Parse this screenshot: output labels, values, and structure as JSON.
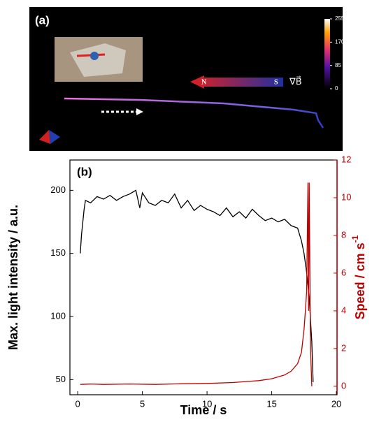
{
  "panel_a": {
    "label": "(a)",
    "north": "N",
    "south": "S",
    "gradient": "∇B⃗",
    "colorbar": {
      "lim": [
        0,
        255
      ],
      "ticks": [
        0,
        85,
        170,
        255
      ]
    }
  },
  "chart_data": {
    "type": "line",
    "label": "(b)",
    "x_label": "Time / s",
    "y_label": "Max. light intensity / a.u.",
    "y2_label": {
      "text": "Speed / cm s",
      "superscript": "-1"
    },
    "xlim": [
      -0.6,
      20.05
    ],
    "xticks": [
      0,
      5,
      10,
      15,
      20
    ],
    "ylim": [
      38,
      224
    ],
    "yticks": [
      50,
      100,
      150,
      200
    ],
    "y2lim": [
      -0.45,
      12
    ],
    "y2ticks": [
      0,
      2,
      4,
      6,
      8,
      10,
      12
    ],
    "series": [
      {
        "color": "#000000",
        "x": [
          0.2,
          0.3,
          0.5,
          0.6,
          1,
          1.5,
          2,
          2.5,
          3,
          3.5,
          4,
          4.5,
          4.8,
          5,
          5.5,
          6,
          6.5,
          7,
          7.5,
          8,
          8.5,
          9,
          9.5,
          10,
          10.5,
          11,
          11.5,
          12,
          12.5,
          13,
          13.5,
          14,
          14.5,
          15,
          15.5,
          16,
          16.5,
          17,
          17.3,
          17.5,
          17.7,
          17.9,
          18.1,
          18.2
        ],
        "values": [
          150,
          165,
          185,
          192,
          190,
          195,
          193,
          196,
          192,
          195,
          197,
          200,
          186,
          198,
          190,
          188,
          192,
          190,
          197,
          186,
          192,
          184,
          188,
          185,
          183,
          180,
          186,
          179,
          183,
          178,
          185,
          180,
          176,
          178,
          175,
          177,
          172,
          170,
          160,
          150,
          135,
          115,
          80,
          48
        ]
      },
      {
        "color": "#c00000",
        "axis": "y2",
        "x": [
          0.2,
          1,
          2,
          4,
          6,
          8,
          10,
          12,
          13,
          14,
          15,
          15.5,
          16,
          16.5,
          17,
          17.3,
          17.5,
          17.6,
          17.7,
          17.75,
          17.8,
          17.85,
          17.9,
          17.95,
          18.0,
          18.1
        ],
        "values": [
          0.1,
          0.12,
          0.1,
          0.12,
          0.1,
          0.13,
          0.15,
          0.2,
          0.25,
          0.3,
          0.4,
          0.5,
          0.6,
          0.8,
          1.2,
          1.8,
          3,
          4,
          5,
          8,
          10.8,
          4,
          10.8,
          6,
          2,
          0
        ]
      }
    ]
  }
}
